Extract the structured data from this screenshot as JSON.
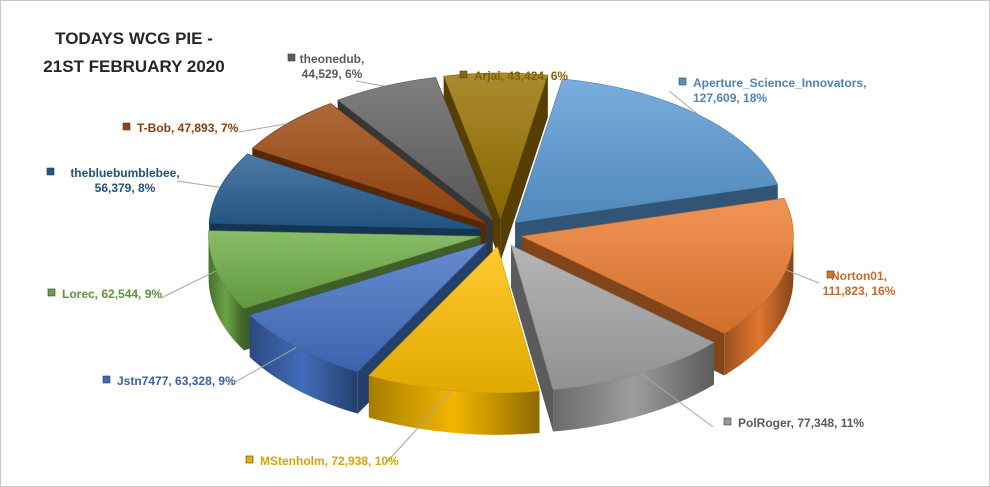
{
  "chart_data": {
    "type": "pie",
    "title_lines": [
      "TODAYS WCG PIE -",
      "21ST FEBRUARY 2020"
    ],
    "legend": "none",
    "slices": [
      {
        "name": "Aperture_Science_Innovators",
        "value": 127609,
        "value_text": "127,609",
        "percent": "18%",
        "color": "#5b9bd5"
      },
      {
        "name": "Norton01",
        "value": 111823,
        "value_text": "111,823",
        "percent": "16%",
        "color": "#ed7d31"
      },
      {
        "name": "PolRoger",
        "value": 77348,
        "value_text": "77,348",
        "percent": "11%",
        "color": "#a5a5a5"
      },
      {
        "name": "MStenholm",
        "value": 72938,
        "value_text": "72,938",
        "percent": "10%",
        "color": "#ffc000"
      },
      {
        "name": "Jstn7477",
        "value": 63328,
        "value_text": "63,328",
        "percent": "9%",
        "color": "#4472c4"
      },
      {
        "name": "Lorec",
        "value": 62544,
        "value_text": "62,544",
        "percent": "9%",
        "color": "#70ad47"
      },
      {
        "name": "thebluebumblebee",
        "value": 56379,
        "value_text": "56,379",
        "percent": "8%",
        "color": "#255e91"
      },
      {
        "name": "T-Bob",
        "value": 47893,
        "value_text": "47,893",
        "percent": "7%",
        "color": "#9e480e"
      },
      {
        "name": "theonedub",
        "value": 44529,
        "value_text": "44,529",
        "percent": "6%",
        "color": "#636363"
      },
      {
        "name": "Arjai",
        "value": 43424,
        "value_text": "43,424",
        "percent": "6%",
        "color": "#997300"
      }
    ]
  }
}
